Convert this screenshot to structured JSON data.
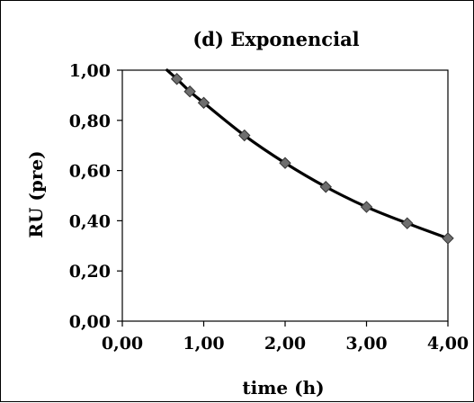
{
  "chart_data": {
    "type": "scatter",
    "title": "(d) Exponencial",
    "xlabel": "time (h)",
    "ylabel": "RU (pre)",
    "xlim": [
      0,
      4
    ],
    "ylim": [
      0,
      1
    ],
    "x_ticks": [
      "0,00",
      "1,00",
      "2,00",
      "3,00",
      "4,00"
    ],
    "y_ticks": [
      "0,00",
      "0,20",
      "0,40",
      "0,60",
      "0,80",
      "1,00"
    ],
    "grid": false,
    "legend": "none",
    "series": [
      {
        "marker": "diamond",
        "marker_color": "#6e6e6e",
        "x": [
          0.67,
          0.83,
          1.0,
          1.5,
          2.0,
          2.5,
          3.0,
          3.5,
          4.0
        ],
        "y": [
          0.965,
          0.915,
          0.87,
          0.74,
          0.63,
          0.535,
          0.455,
          0.39,
          0.33
        ]
      }
    ],
    "fit_line": {
      "type": "exponential",
      "color": "#000000",
      "x": [
        0.55,
        0.67,
        0.83,
        1.0,
        1.5,
        2.0,
        2.5,
        3.0,
        3.5,
        4.0
      ],
      "y": [
        1.0,
        0.965,
        0.915,
        0.87,
        0.74,
        0.63,
        0.535,
        0.455,
        0.39,
        0.33
      ]
    }
  }
}
